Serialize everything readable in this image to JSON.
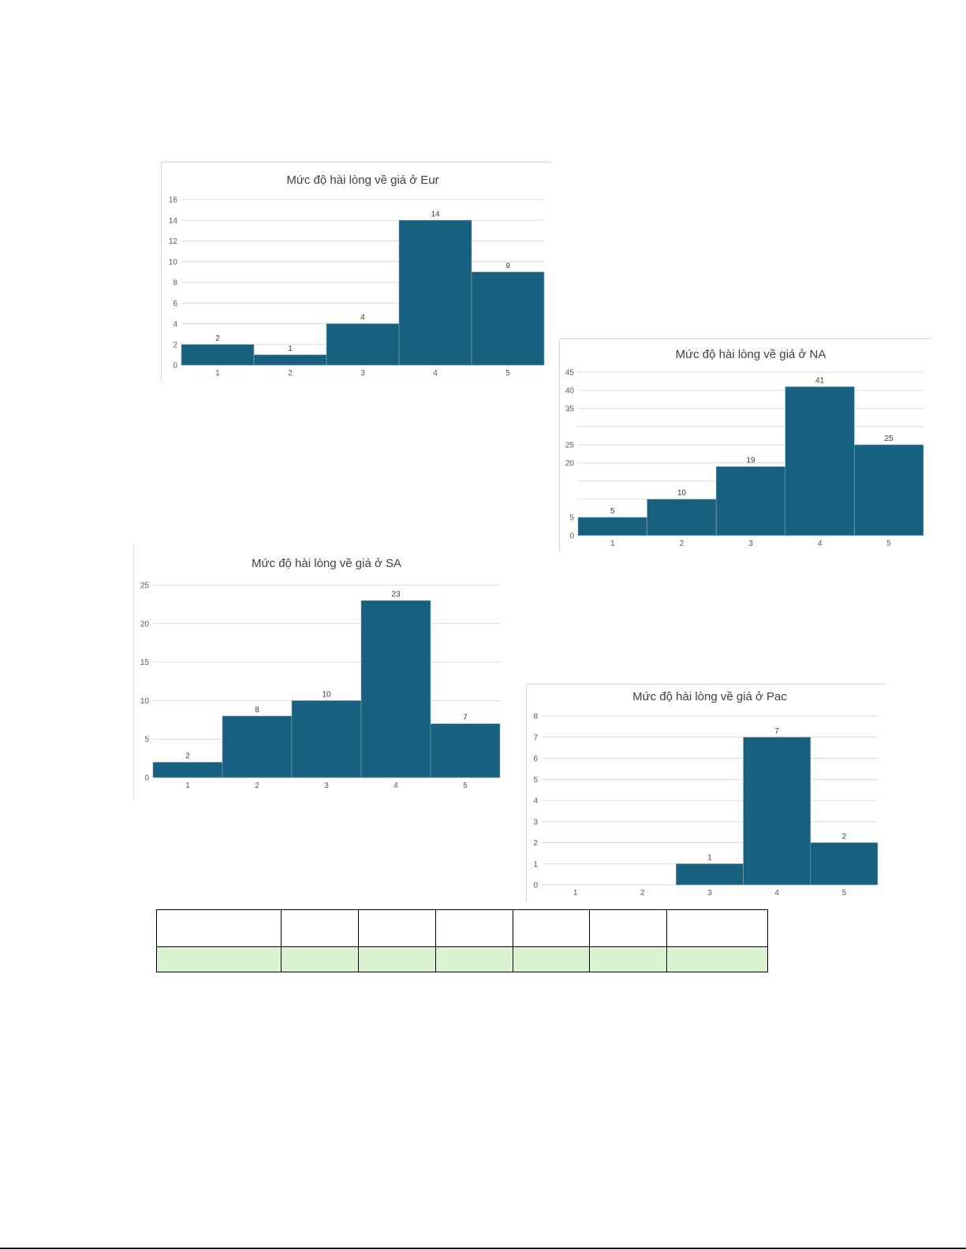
{
  "chart_data": [
    {
      "type": "bar",
      "title": "Mức độ hài lòng về giá ở Eur",
      "categories": [
        "1",
        "2",
        "3",
        "4",
        "5"
      ],
      "values": [
        2,
        1,
        4,
        14,
        9
      ],
      "ylim": [
        0,
        16
      ],
      "yticks": [
        "0",
        "2",
        "4",
        "6",
        "8",
        "10",
        "12",
        "14",
        "16"
      ],
      "grid": true,
      "legend": "none"
    },
    {
      "type": "bar",
      "title": "Mức độ hài lòng về giá ở NA",
      "categories": [
        "1",
        "2",
        "3",
        "4",
        "5"
      ],
      "values": [
        5,
        10,
        19,
        41,
        25
      ],
      "ylim": [
        0,
        45
      ],
      "yticks": [
        "0",
        "5",
        "",
        "",
        "20",
        "25",
        "",
        "35",
        "40",
        "45"
      ],
      "grid": true,
      "legend": "none"
    },
    {
      "type": "bar",
      "title": "Mức độ hài lòng về giá ở SA",
      "categories": [
        "1",
        "2",
        "3",
        "4",
        "5"
      ],
      "values": [
        2,
        8,
        10,
        23,
        7
      ],
      "ylim": [
        0,
        25
      ],
      "yticks": [
        "0",
        "5",
        "10",
        "15",
        "20",
        "25"
      ],
      "grid": true,
      "legend": "none"
    },
    {
      "type": "bar",
      "title": "Mức độ hài lòng về giá ở Pac",
      "categories": [
        "1",
        "2",
        "3",
        "4",
        "5"
      ],
      "values": [
        0,
        0,
        1,
        7,
        2
      ],
      "ylim": [
        0,
        8
      ],
      "yticks": [
        "0",
        "1",
        "2",
        "3",
        "4",
        "5",
        "6",
        "7",
        "8"
      ],
      "grid": true,
      "legend": "none",
      "hide_zero_labels": true
    }
  ],
  "colors": {
    "bar": "#17607f",
    "table_highlight_row": "#d9f2d0"
  },
  "table": {
    "rows": [
      [
        "",
        "",
        "",
        "",
        "",
        "",
        ""
      ],
      [
        "",
        "",
        "",
        "",
        "",
        "",
        ""
      ]
    ]
  }
}
